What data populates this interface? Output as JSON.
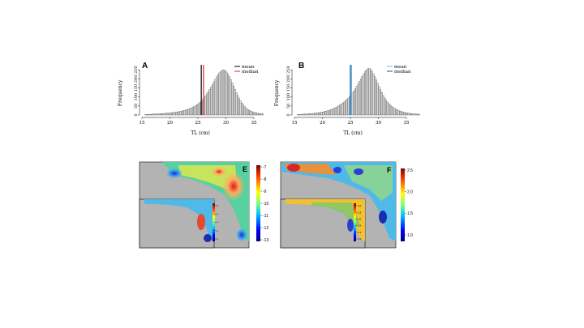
{
  "chart_data": [
    {
      "panel": "A",
      "type": "bar",
      "xlabel": "TL (cm)",
      "ylabel": "Frequency",
      "xlim": [
        15,
        35
      ],
      "ylim": [
        0,
        260
      ],
      "xticks": [
        "15",
        "20",
        "25",
        "30",
        "35"
      ],
      "yticks": [
        "0",
        "50",
        "100",
        "150",
        "200",
        "250"
      ],
      "bin_width": 0.25,
      "bin_start": 15.5,
      "values": [
        2,
        3,
        3,
        4,
        4,
        5,
        5,
        6,
        6,
        6,
        7,
        7,
        8,
        8,
        9,
        10,
        10,
        11,
        12,
        13,
        14,
        15,
        16,
        17,
        19,
        20,
        22,
        24,
        26,
        28,
        30,
        33,
        36,
        39,
        43,
        47,
        52,
        57,
        63,
        70,
        78,
        86,
        96,
        106,
        118,
        130,
        142,
        156,
        170,
        184,
        198,
        212,
        224,
        234,
        242,
        248,
        250,
        246,
        238,
        226,
        212,
        196,
        178,
        160,
        142,
        124,
        108,
        92,
        78,
        66,
        55,
        46,
        38,
        32,
        27,
        23,
        19,
        16,
        14,
        12,
        10,
        9,
        8,
        7,
        6,
        6,
        5,
        5,
        4,
        4,
        3,
        3,
        3,
        2,
        2,
        2,
        2,
        1,
        1,
        1
      ],
      "legend": [
        {
          "label": "mean",
          "value": 25.6,
          "color": "#000000"
        },
        {
          "label": "median",
          "value": 26.0,
          "color": "#d62728"
        }
      ],
      "legend_position": "top-right"
    },
    {
      "panel": "B",
      "type": "bar",
      "xlabel": "TL (cm)",
      "ylabel": "Frequency",
      "xlim": [
        15,
        35
      ],
      "ylim": [
        0,
        260
      ],
      "xticks": [
        "15",
        "20",
        "25",
        "30",
        "35"
      ],
      "yticks": [
        "0",
        "50",
        "100",
        "150",
        "200",
        "250"
      ],
      "bin_width": 0.25,
      "bin_start": 15.5,
      "values": [
        3,
        3,
        4,
        4,
        5,
        5,
        6,
        6,
        7,
        8,
        8,
        9,
        10,
        11,
        12,
        13,
        14,
        16,
        17,
        19,
        21,
        23,
        25,
        28,
        31,
        34,
        37,
        41,
        45,
        50,
        55,
        60,
        66,
        72,
        79,
        86,
        94,
        103,
        112,
        122,
        133,
        145,
        158,
        172,
        186,
        200,
        214,
        228,
        240,
        250,
        256,
        258,
        252,
        242,
        228,
        212,
        194,
        176,
        158,
        140,
        124,
        108,
        94,
        82,
        72,
        63,
        55,
        48,
        42,
        37,
        32,
        28,
        25,
        22,
        19,
        17,
        15,
        13,
        11,
        10,
        9,
        8,
        7,
        6,
        6,
        5,
        5,
        4,
        4,
        3,
        3,
        3,
        2,
        2,
        2,
        2,
        1,
        1,
        1,
        1
      ],
      "legend": [
        {
          "label": "mean",
          "value": 25.2,
          "color": "#5bc0de"
        },
        {
          "label": "median",
          "value": 25.0,
          "color": "#1f4e9c"
        }
      ],
      "legend_position": "top-right"
    },
    {
      "panel": "E",
      "type": "heatmap",
      "colorbar_ticks": [
        "-7",
        "-8",
        "-9",
        "-10",
        "-11",
        "-12",
        "-13"
      ],
      "inset_colorbar_ticks": [
        "8",
        "6",
        "4",
        "2",
        "0"
      ]
    },
    {
      "panel": "F",
      "type": "heatmap",
      "colorbar_ticks": [
        "2.5",
        "2.0",
        "1.5",
        "1.0"
      ],
      "inset_colorbar_ticks": [
        "2.0",
        "1.8",
        "1.6",
        "1.4",
        "1.2",
        "1.0"
      ]
    }
  ]
}
